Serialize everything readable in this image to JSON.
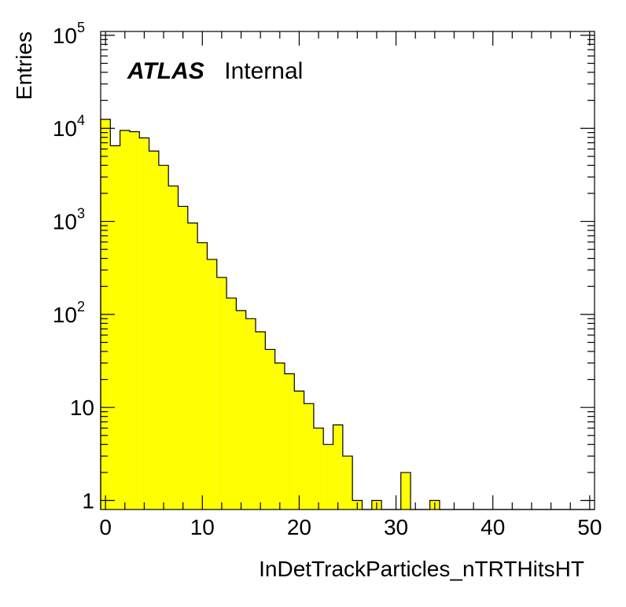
{
  "chart_data": {
    "type": "bar",
    "title": "",
    "xlabel": "InDetTrackParticles_nTRTHitsHT",
    "ylabel": "Entries",
    "xlim": [
      -0.5,
      50.5
    ],
    "ylim": [
      0.8,
      110000
    ],
    "yscale": "log",
    "grid": false,
    "bin_width": 1,
    "fill_color": "#ffff00",
    "line_color": "#000000",
    "x": [
      0,
      1,
      2,
      3,
      4,
      5,
      6,
      7,
      8,
      9,
      10,
      11,
      12,
      13,
      14,
      15,
      16,
      17,
      18,
      19,
      20,
      21,
      22,
      23,
      24,
      25,
      26,
      27,
      28,
      29,
      30,
      31,
      32,
      33,
      34,
      35,
      36,
      37,
      38,
      39,
      40,
      41,
      42,
      43,
      44,
      45,
      46,
      47,
      48,
      49,
      50
    ],
    "values": [
      12500,
      6500,
      9500,
      9200,
      7900,
      5700,
      4000,
      2400,
      1450,
      960,
      590,
      390,
      250,
      150,
      110,
      90,
      65,
      42,
      30,
      23,
      15,
      11,
      6,
      4,
      6.5,
      3,
      1,
      0,
      1,
      0,
      0,
      2,
      0,
      0,
      1,
      0,
      0,
      0,
      0,
      0,
      0,
      0,
      0,
      0,
      0,
      0,
      0,
      0,
      0,
      0,
      0
    ],
    "x_ticks": [
      "0",
      "10",
      "20",
      "30",
      "40",
      "50"
    ],
    "y_ticks": [
      {
        "base": "1",
        "exp": ""
      },
      {
        "base": "10",
        "exp": ""
      },
      {
        "base": "10",
        "exp": "2"
      },
      {
        "base": "10",
        "exp": "3"
      },
      {
        "base": "10",
        "exp": "4"
      },
      {
        "base": "10",
        "exp": "5"
      }
    ],
    "annotation": {
      "bold": "ATLAS",
      "text": "Internal"
    }
  }
}
